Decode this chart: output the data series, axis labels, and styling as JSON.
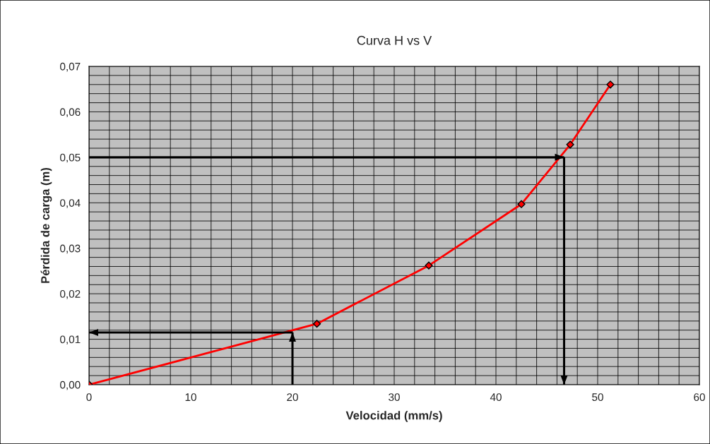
{
  "chart_data": {
    "type": "line",
    "title": "Curva H vs V",
    "xlabel": "Velocidad (mm/s)",
    "ylabel": "Pérdida de carga (m)",
    "xlim": [
      0,
      60
    ],
    "xticks": [
      0,
      10,
      20,
      30,
      40,
      50,
      60
    ],
    "ylim": [
      0,
      0.07
    ],
    "yticks": [
      {
        "value": 0,
        "label": "0,00"
      },
      {
        "value": 0.01,
        "label": "0,01"
      },
      {
        "value": 0.02,
        "label": "0,02"
      },
      {
        "value": 0.03,
        "label": "0,03"
      },
      {
        "value": 0.04,
        "label": "0,04"
      },
      {
        "value": 0.05,
        "label": "0,05"
      },
      {
        "value": 0.06,
        "label": "0,06"
      },
      {
        "value": 0.07,
        "label": "0,07"
      }
    ],
    "grid": true,
    "marker": "diamond",
    "line_style": "solid",
    "legend": false,
    "series": [
      {
        "color": "#ff0000",
        "x": [
          0,
          22.4,
          33.4,
          42.5,
          47.3,
          51.25
        ],
        "values": [
          0,
          0.0134,
          0.0262,
          0.0397,
          0.0528,
          0.066
        ]
      },
      {
        "color": "#000000",
        "marker": "none",
        "x": [
          0,
          46.7
        ],
        "values": [
          0.05,
          0.05
        ]
      },
      {
        "color": "#000000",
        "marker": "none",
        "x": [
          46.7,
          46.7
        ],
        "values": [
          0.05,
          0
        ]
      },
      {
        "color": "#000000",
        "marker": "none",
        "x": [
          20,
          20
        ],
        "values": [
          0,
          0.0115
        ]
      },
      {
        "color": "#000000",
        "marker": "none",
        "x": [
          20,
          0
        ],
        "values": [
          0.0115,
          0.0115
        ]
      }
    ]
  }
}
